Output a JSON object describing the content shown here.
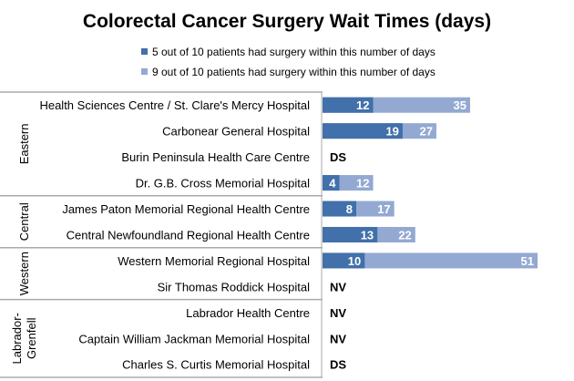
{
  "chart_data": {
    "type": "bar",
    "orientation": "horizontal",
    "title": "Colorectal Cancer Surgery Wait Times (days)",
    "legend_position": "top",
    "grid": false,
    "xlim": [
      0,
      51
    ],
    "colors": {
      "median": "#4170AA",
      "p90": "#93A9D2",
      "text_on_bar": "#FFFFFF",
      "note": "#000000"
    },
    "series": [
      {
        "name": "5 out of 10 patients had surgery within this number of days",
        "key": "median"
      },
      {
        "name": "9 out of 10 patients had surgery within this number of days",
        "key": "p90"
      }
    ],
    "groups": [
      {
        "name": "Eastern",
        "rows": [
          {
            "label": "Health Sciences Centre / St. Clare's Mercy Hospital",
            "median": 12,
            "p90": 35
          },
          {
            "label": "Carbonear General Hospital",
            "median": 19,
            "p90": 27
          },
          {
            "label": "Burin Peninsula Health Care Centre",
            "note": "DS"
          },
          {
            "label": "Dr. G.B. Cross Memorial Hospital",
            "median": 4,
            "p90": 12
          }
        ]
      },
      {
        "name": "Central",
        "rows": [
          {
            "label": "James Paton Memorial Regional Health Centre",
            "median": 8,
            "p90": 17
          },
          {
            "label": "Central Newfoundland Regional Health Centre",
            "median": 13,
            "p90": 22
          }
        ]
      },
      {
        "name": "Western",
        "rows": [
          {
            "label": "Western Memorial Regional Hospital",
            "median": 10,
            "p90": 51
          },
          {
            "label": "Sir Thomas Roddick Hospital",
            "note": "NV"
          }
        ]
      },
      {
        "name": "Labrador-Grenfell",
        "name_lines": [
          "Labrador-",
          "Grenfell"
        ],
        "rows": [
          {
            "label": "Labrador Health Centre",
            "note": "NV"
          },
          {
            "label": "Captain William Jackman Memorial Hospital",
            "note": "NV"
          },
          {
            "label": "Charles S. Curtis Memorial Hospital",
            "note": "DS"
          }
        ]
      }
    ]
  }
}
